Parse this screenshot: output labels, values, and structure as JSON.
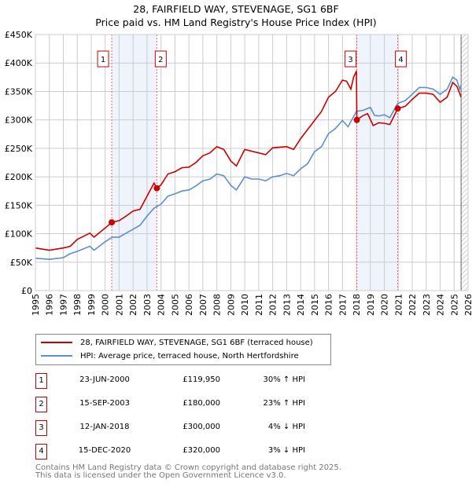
{
  "title": "28, FAIRFIELD WAY, STEVENAGE, SG1 6BF",
  "subtitle": "Price paid vs. HM Land Registry's House Price Index (HPI)",
  "chart_data": {
    "type": "line",
    "title": "28, FAIRFIELD WAY, STEVENAGE, SG1 6BF — Price paid vs. HM Land Registry's House Price Index (HPI)",
    "xlim": [
      1995,
      2026
    ],
    "ylim": [
      0,
      450000
    ],
    "x_ticks": [
      "1995",
      "1996",
      "1997",
      "1998",
      "1999",
      "2000",
      "2001",
      "2002",
      "2003",
      "2004",
      "2005",
      "2006",
      "2007",
      "2008",
      "2009",
      "2010",
      "2011",
      "2012",
      "2013",
      "2014",
      "2015",
      "2016",
      "2017",
      "2018",
      "2019",
      "2020",
      "2021",
      "2022",
      "2023",
      "2024",
      "2025",
      "2026"
    ],
    "y_ticks": [
      {
        "v": 0,
        "label": "£0"
      },
      {
        "v": 50000,
        "label": "£50K"
      },
      {
        "v": 100000,
        "label": "£100K"
      },
      {
        "v": 150000,
        "label": "£150K"
      },
      {
        "v": 200000,
        "label": "£200K"
      },
      {
        "v": 250000,
        "label": "£250K"
      },
      {
        "v": 300000,
        "label": "£300K"
      },
      {
        "v": 350000,
        "label": "£350K"
      },
      {
        "v": 400000,
        "label": "£400K"
      },
      {
        "v": 450000,
        "label": "£450K"
      }
    ],
    "grid": true,
    "series": [
      {
        "name": "28, FAIRFIELD WAY, STEVENAGE, SG1 6BF (terraced house)",
        "color": "#cc0000",
        "x": [
          1995,
          1996,
          1997,
          1997.5,
          1998,
          1998.9,
          1999.2,
          2000,
          2000.47,
          2001,
          2001.5,
          2002,
          2002.5,
          2003,
          2003.5,
          2003.7,
          2004,
          2004.5,
          2005,
          2005.5,
          2006,
          2006.5,
          2007,
          2007.5,
          2008,
          2008.5,
          2009,
          2009.4,
          2010,
          2011,
          2011.5,
          2012,
          2013,
          2013.5,
          2014,
          2014.5,
          2015,
          2015.5,
          2016,
          2016.5,
          2017,
          2017.3,
          2017.6,
          2017.8,
          2018.0,
          2018.03,
          2018.5,
          2018.8,
          2019.2,
          2019.6,
          2020,
          2020.4,
          2020.96,
          2021.5,
          2022,
          2022.5,
          2023,
          2023.5,
          2024,
          2024.5,
          2024.9,
          2025.2,
          2025.5
        ],
        "y": [
          75,
          71,
          75,
          78,
          90,
          101,
          94,
          110,
          120,
          123,
          131,
          140,
          143,
          166,
          189,
          180,
          186,
          205,
          209,
          216,
          217,
          225,
          237,
          242,
          253,
          248,
          228,
          219,
          248,
          242,
          239,
          251,
          253,
          248,
          267,
          283,
          299,
          315,
          340,
          350,
          370,
          368,
          354,
          375,
          386,
          300,
          308,
          311,
          290,
          295,
          294,
          292,
          320,
          324,
          336,
          347,
          347,
          345,
          331,
          340,
          366,
          359,
          340
        ],
        "unit": "thousand GBP"
      },
      {
        "name": "HPI: Average price, terraced house, North Hertfordshire",
        "color": "#5b8fd0",
        "x": [
          1995,
          1996,
          1997,
          1997.5,
          1998,
          1998.9,
          1999.2,
          2000,
          2000.5,
          2001,
          2001.5,
          2002,
          2002.5,
          2003,
          2003.5,
          2004,
          2004.5,
          2005,
          2005.5,
          2006,
          2006.5,
          2007,
          2007.5,
          2008,
          2008.5,
          2009,
          2009.4,
          2010,
          2010.5,
          2011,
          2011.5,
          2012,
          2012.5,
          2013,
          2013.5,
          2014,
          2014.5,
          2015,
          2015.5,
          2016,
          2016.5,
          2017,
          2017.4,
          2018,
          2018.5,
          2019,
          2019.3,
          2019.6,
          2020,
          2020.4,
          2020.96,
          2021.5,
          2022,
          2022.5,
          2023,
          2023.5,
          2024,
          2024.5,
          2024.9,
          2025.2,
          2025.4,
          2025.5
        ],
        "y": [
          57,
          55,
          58,
          65,
          69,
          78,
          71,
          86,
          94,
          94,
          101,
          108,
          115,
          131,
          145,
          152,
          166,
          170,
          175,
          177,
          184,
          193,
          196,
          205,
          202,
          185,
          177,
          200,
          196,
          196,
          193,
          200,
          202,
          206,
          202,
          214,
          223,
          244,
          253,
          276,
          285,
          299,
          288,
          315,
          317,
          322,
          308,
          307,
          309,
          304,
          329,
          334,
          345,
          357,
          357,
          354,
          345,
          354,
          375,
          370,
          354,
          361
        ],
        "unit": "thousand GBP"
      }
    ],
    "sales": [
      {
        "id": "1",
        "x": 2000.47,
        "price": 119950
      },
      {
        "id": "2",
        "x": 2003.7,
        "price": 180000
      },
      {
        "id": "3",
        "x": 2018.03,
        "price": 300000
      },
      {
        "id": "4",
        "x": 2020.96,
        "price": 320000
      }
    ],
    "shaded_ranges": [
      [
        2000.47,
        2003.7
      ],
      [
        2018.03,
        2020.96
      ]
    ],
    "forecast_start": 2025.5
  },
  "legend": {
    "property": "28, FAIRFIELD WAY, STEVENAGE, SG1 6BF (terraced house)",
    "hpi": "HPI: Average price, terraced house, North Hertfordshire"
  },
  "transactions": [
    {
      "num": "1",
      "date": "23-JUN-2000",
      "price": "£119,950",
      "hpi": "30% ↑ HPI"
    },
    {
      "num": "2",
      "date": "15-SEP-2003",
      "price": "£180,000",
      "hpi": "23% ↑ HPI"
    },
    {
      "num": "3",
      "date": "12-JAN-2018",
      "price": "£300,000",
      "hpi": "4% ↓ HPI"
    },
    {
      "num": "4",
      "date": "15-DEC-2020",
      "price": "£320,000",
      "hpi": "3% ↓ HPI"
    }
  ],
  "footer": {
    "line1": "Contains HM Land Registry data © Crown copyright and database right 2025.",
    "line2": "This data is licensed under the Open Government Licence v3.0."
  }
}
